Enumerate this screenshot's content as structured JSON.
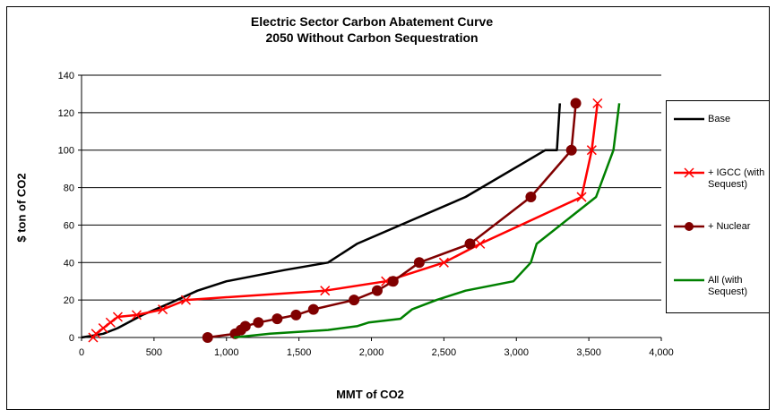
{
  "chart_data": {
    "type": "line",
    "title": "Electric Sector Carbon Abatement Curve",
    "subtitle": "2050 Without Carbon Sequestration",
    "xlabel": "MMT of CO2",
    "ylabel": "$ ton of CO2",
    "xlim": [
      0,
      4000
    ],
    "ylim": [
      0,
      140
    ],
    "x_ticks": [
      0,
      500,
      1000,
      1500,
      2000,
      2500,
      3000,
      3500,
      4000
    ],
    "x_tick_labels": [
      "0",
      "500",
      "1,000",
      "1,500",
      "2,000",
      "2,500",
      "3,000",
      "3,500",
      "4,000"
    ],
    "y_ticks": [
      0,
      20,
      40,
      60,
      80,
      100,
      120,
      140
    ],
    "y_tick_labels": [
      "0",
      "20",
      "40",
      "60",
      "80",
      "100",
      "120",
      "140"
    ],
    "grid": "horizontal",
    "legend_position": "right",
    "series": [
      {
        "name": "Base",
        "color": "#000000",
        "marker": "none",
        "points": [
          [
            0,
            0
          ],
          [
            80,
            1
          ],
          [
            150,
            2
          ],
          [
            250,
            5
          ],
          [
            420,
            12
          ],
          [
            600,
            18
          ],
          [
            800,
            25
          ],
          [
            1000,
            30
          ],
          [
            1400,
            36
          ],
          [
            1700,
            40
          ],
          [
            1900,
            50
          ],
          [
            2200,
            60
          ],
          [
            2650,
            75
          ],
          [
            3200,
            100
          ],
          [
            3280,
            100
          ],
          [
            3300,
            125
          ]
        ]
      },
      {
        "name": "+ IGCC (with\nSequest)",
        "color": "#ff0000",
        "marker": "x",
        "points": [
          [
            80,
            0
          ],
          [
            100,
            2
          ],
          [
            150,
            5
          ],
          [
            200,
            8
          ],
          [
            250,
            11
          ],
          [
            380,
            12
          ],
          [
            560,
            15
          ],
          [
            720,
            20
          ],
          [
            1680,
            25
          ],
          [
            2100,
            30
          ],
          [
            2500,
            40
          ],
          [
            2750,
            50
          ],
          [
            3450,
            75
          ],
          [
            3520,
            100
          ],
          [
            3560,
            125
          ]
        ]
      },
      {
        "name": "+ Nuclear",
        "color": "#800000",
        "marker": "circle",
        "points": [
          [
            870,
            0
          ],
          [
            1060,
            2
          ],
          [
            1100,
            4
          ],
          [
            1130,
            6
          ],
          [
            1220,
            8
          ],
          [
            1350,
            10
          ],
          [
            1480,
            12
          ],
          [
            1600,
            15
          ],
          [
            1880,
            20
          ],
          [
            2040,
            25
          ],
          [
            2150,
            30
          ],
          [
            2330,
            40
          ],
          [
            2680,
            50
          ],
          [
            3100,
            75
          ],
          [
            3380,
            100
          ],
          [
            3410,
            125
          ]
        ]
      },
      {
        "name": "All (with\nSequest)",
        "color": "#008000",
        "marker": "none",
        "points": [
          [
            1050,
            0
          ],
          [
            1300,
            2
          ],
          [
            1700,
            4
          ],
          [
            1900,
            6
          ],
          [
            1980,
            8
          ],
          [
            2200,
            10
          ],
          [
            2280,
            15
          ],
          [
            2450,
            20
          ],
          [
            2650,
            25
          ],
          [
            2980,
            30
          ],
          [
            3100,
            40
          ],
          [
            3140,
            50
          ],
          [
            3550,
            75
          ],
          [
            3670,
            100
          ],
          [
            3710,
            125
          ]
        ]
      }
    ]
  }
}
